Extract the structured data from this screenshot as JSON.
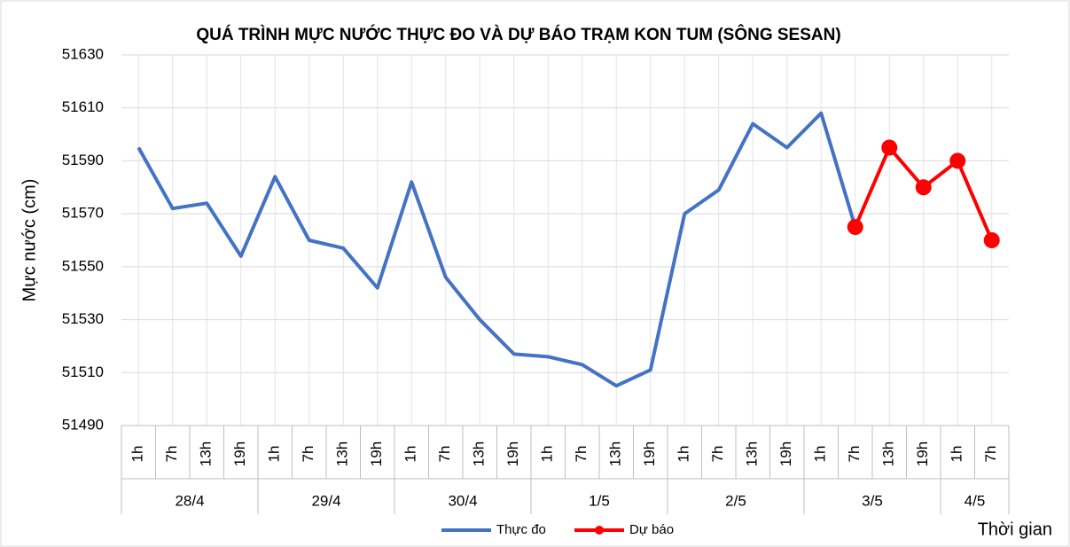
{
  "chart_data": {
    "type": "line",
    "title": "QUÁ TRÌNH MỰC NƯỚC THỰC ĐO VÀ DỰ BÁO TRẠM KON TUM (SÔNG SESAN)",
    "ylabel": "Mực nước (cm)",
    "xlabel": "Thời gian",
    "categories": [
      "1h",
      "7h",
      "13h",
      "19h",
      "1h",
      "7h",
      "13h",
      "19h",
      "1h",
      "7h",
      "13h",
      "19h",
      "1h",
      "7h",
      "13h",
      "19h",
      "1h",
      "7h",
      "13h",
      "19h",
      "1h",
      "7h",
      "13h",
      "19h",
      "1h",
      "7h"
    ],
    "x_groups": [
      {
        "label": "28/4",
        "size": 4
      },
      {
        "label": "29/4",
        "size": 4
      },
      {
        "label": "30/4",
        "size": 4
      },
      {
        "label": "1/5",
        "size": 4
      },
      {
        "label": "2/5",
        "size": 4
      },
      {
        "label": "3/5",
        "size": 4
      },
      {
        "label": "4/5",
        "size": 2
      }
    ],
    "series": [
      {
        "name": "Thực đo",
        "color": "#4472c4",
        "marker": false,
        "values": [
          51595,
          51572,
          51574,
          51554,
          51584,
          51560,
          51557,
          51542,
          51582,
          51546,
          51530,
          51517,
          51516,
          51513,
          51505,
          51511,
          51570,
          51579,
          51604,
          51595,
          51608,
          51565,
          null,
          null,
          null,
          null
        ]
      },
      {
        "name": "Dự báo",
        "color": "#ff0000",
        "marker": true,
        "values": [
          null,
          null,
          null,
          null,
          null,
          null,
          null,
          null,
          null,
          null,
          null,
          null,
          null,
          null,
          null,
          null,
          null,
          null,
          null,
          null,
          null,
          51565,
          51595,
          51580,
          51590,
          51560
        ]
      }
    ],
    "ylim": [
      51490,
      51630
    ],
    "yticks": [
      51490,
      51510,
      51530,
      51550,
      51570,
      51590,
      51610,
      51630
    ],
    "grid": true,
    "legend": "bottom"
  }
}
